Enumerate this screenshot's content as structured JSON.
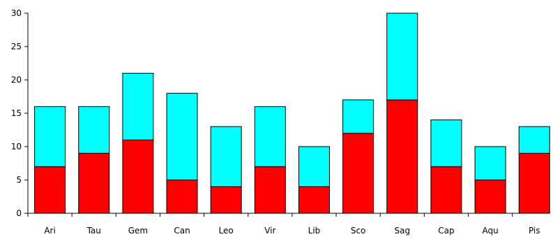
{
  "chart_data": {
    "type": "bar",
    "stacked": true,
    "categories": [
      "Ari",
      "Tau",
      "Gem",
      "Can",
      "Leo",
      "Vir",
      "Lib",
      "Sco",
      "Sag",
      "Cap",
      "Aqu",
      "Pis"
    ],
    "series": [
      {
        "values": [
          7,
          9,
          11,
          5,
          4,
          7,
          4,
          12,
          17,
          7,
          5,
          9
        ],
        "color": "#ff0000"
      },
      {
        "values": [
          9,
          7,
          10,
          13,
          9,
          9,
          6,
          5,
          13,
          7,
          5,
          4
        ],
        "color": "#00ffff"
      }
    ],
    "title": "",
    "xlabel": "",
    "ylabel": "",
    "ylim": [
      0,
      30
    ],
    "yticks": [
      0,
      5,
      10,
      15,
      20,
      25,
      30
    ],
    "grid": false,
    "legend": "none"
  }
}
